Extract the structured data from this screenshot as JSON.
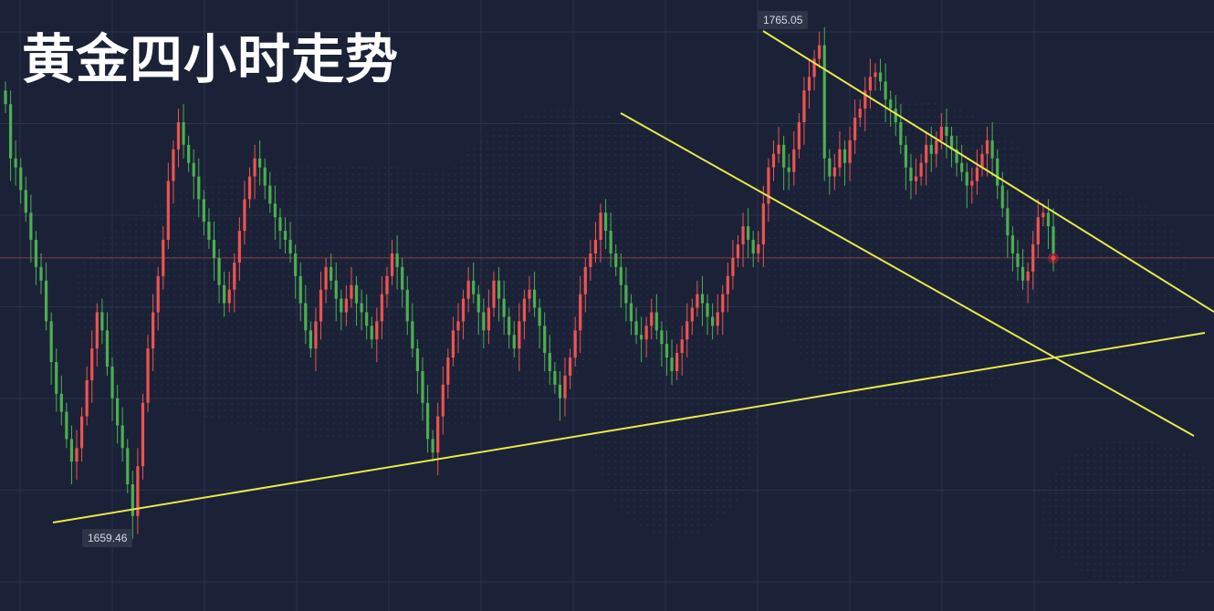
{
  "title": "黄金四小时走势",
  "labels": {
    "high": "1765.05",
    "low": "1659.46"
  },
  "colors": {
    "up": "#ef5350",
    "down": "#26a69a",
    "green": "#4caf50",
    "trendline": "#e8e84a",
    "grid": "#2a3249",
    "current_line": "#d14b4b"
  },
  "chart_data": {
    "type": "candlestick",
    "title": "黄金四小时走势",
    "xlabel": "",
    "ylabel": "",
    "ylim": [
      1640,
      1775
    ],
    "high_marker": 1765.05,
    "low_marker": 1659.46,
    "current_price_line": 1718,
    "closes": [
      1752,
      1740,
      1738,
      1733,
      1728,
      1722,
      1716,
      1713,
      1704,
      1695,
      1688,
      1684,
      1678,
      1673,
      1676,
      1683,
      1691,
      1698,
      1706,
      1702,
      1694,
      1687,
      1681,
      1676,
      1668,
      1661,
      1672,
      1686,
      1698,
      1706,
      1714,
      1722,
      1735,
      1742,
      1748,
      1743,
      1739,
      1736,
      1731,
      1726,
      1722,
      1718,
      1712,
      1708,
      1711,
      1717,
      1724,
      1731,
      1736,
      1740,
      1738,
      1734,
      1730,
      1727,
      1724,
      1722,
      1719,
      1714,
      1708,
      1702,
      1698,
      1704,
      1711,
      1716,
      1713,
      1709,
      1706,
      1709,
      1712,
      1708,
      1706,
      1703,
      1700,
      1704,
      1710,
      1714,
      1719,
      1716,
      1711,
      1704,
      1698,
      1693,
      1686,
      1678,
      1675,
      1683,
      1690,
      1696,
      1702,
      1704,
      1709,
      1713,
      1710,
      1706,
      1702,
      1707,
      1713,
      1709,
      1705,
      1701,
      1698,
      1704,
      1709,
      1711,
      1707,
      1703,
      1697,
      1693,
      1690,
      1687,
      1692,
      1696,
      1702,
      1710,
      1716,
      1719,
      1722,
      1728,
      1724,
      1719,
      1716,
      1712,
      1708,
      1704,
      1701,
      1700,
      1703,
      1706,
      1702,
      1699,
      1696,
      1693,
      1697,
      1700,
      1704,
      1707,
      1710,
      1708,
      1705,
      1703,
      1706,
      1710,
      1714,
      1718,
      1721,
      1725,
      1722,
      1719,
      1721,
      1730,
      1738,
      1741,
      1743,
      1738,
      1737,
      1742,
      1748,
      1755,
      1758,
      1762,
      1765,
      1740,
      1736,
      1738,
      1742,
      1739,
      1744,
      1749,
      1751,
      1755,
      1758,
      1759,
      1757,
      1753,
      1751,
      1748,
      1743,
      1738,
      1735,
      1736,
      1739,
      1743,
      1741,
      1744,
      1747,
      1745,
      1742,
      1739,
      1737,
      1734,
      1735,
      1738,
      1741,
      1744,
      1740,
      1734,
      1729,
      1723,
      1719,
      1716,
      1713,
      1715,
      1721,
      1727,
      1728,
      1725,
      1719
    ]
  }
}
